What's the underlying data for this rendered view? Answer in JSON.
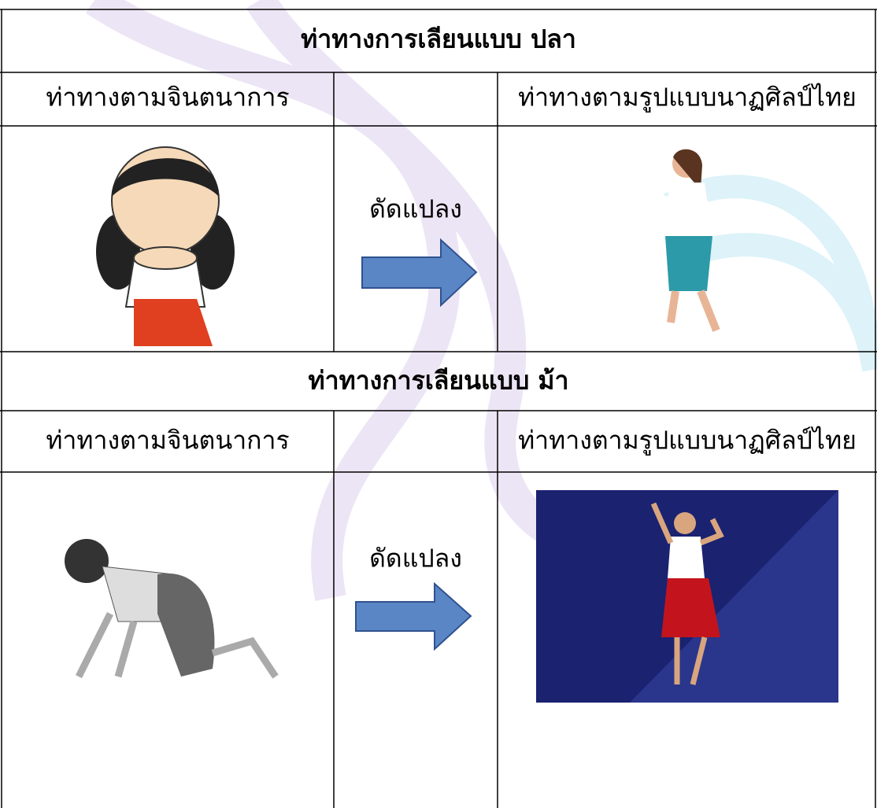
{
  "sections": [
    {
      "title": "ท่าทางการเลียนแบบ ปลา",
      "left_label": "ท่าทางตามจินตนาการ",
      "transform_label": "ดัดแปลง",
      "right_label": "ท่าทางตามรูปแบบนาฏศิลป์ไทย"
    },
    {
      "title": "ท่าทางการเลียนแบบ ม้า",
      "left_label": "ท่าทางตามจินตนาการ",
      "transform_label": "ดัดแปลง",
      "right_label": "ท่าทางตามรูปแบบนาฏศิลป์ไทย"
    }
  ]
}
